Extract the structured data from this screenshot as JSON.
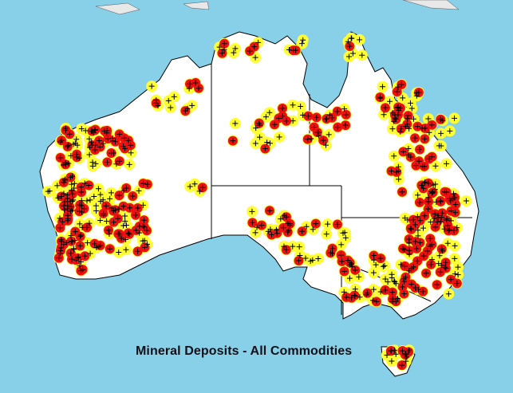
{
  "map": {
    "caption": "Mineral Deposits - All Commodities",
    "colors": {
      "sea": "#88d0e8",
      "land": "#ffffff",
      "border": "#000000",
      "deposit_halo": "#ffff33",
      "major_deposit": "#ee1111",
      "deposit_marker": "#000000"
    },
    "legend_symbols": {
      "deposit": "plus-marker",
      "major_deposit": "red-dot"
    }
  }
}
